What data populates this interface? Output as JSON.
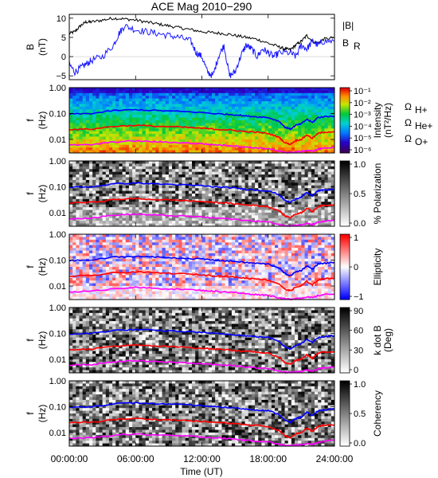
{
  "chart_data": {
    "type": "line",
    "title": "ACE Mag 2010−290",
    "xlabel": "Time (UT)",
    "x_ticks": [
      "00:00:00",
      "06:00:00",
      "12:00:00",
      "18:00:00",
      "24:00:00"
    ],
    "x_range_hours": [
      0,
      24
    ],
    "legend": {
      "B_total": "|B|",
      "B_radial": "B",
      "B_radial_sub": "R",
      "omega": "Ω",
      "h_sub": "H+",
      "he_sub": "He+",
      "o_sub": "O+"
    },
    "colors": {
      "B_total": "#000000",
      "B_radial": "#1a1aff",
      "omega_H": "#0000ff",
      "omega_He": "#ff0000",
      "omega_O": "#ff00ff"
    },
    "panels": [
      {
        "name": "magnetic-field",
        "type": "line",
        "ylabel": "B",
        "yunit": "(nT)",
        "ylim": [
          -6,
          11
        ],
        "y_ticks": [
          "10",
          "5",
          "0",
          "−5"
        ],
        "y_tick_values": [
          10,
          5,
          0,
          -5
        ],
        "series": [
          {
            "name": "|B|",
            "x": [
              0,
              0.5,
              1,
              1.5,
              2,
              3,
              4,
              5,
              6,
              7,
              8,
              9,
              10,
              11,
              12,
              13,
              14,
              15,
              16,
              17,
              18,
              19,
              19.5,
              20,
              20.5,
              21,
              21.5,
              22,
              22.5,
              23,
              24
            ],
            "y": [
              6,
              6.5,
              8,
              9,
              9,
              9.5,
              10,
              9.8,
              9.5,
              9,
              8.5,
              8,
              7.5,
              7,
              6.5,
              6.2,
              6,
              5.5,
              5,
              4.5,
              3.5,
              2.5,
              2,
              1.8,
              3,
              4,
              5.5,
              4,
              3.5,
              4.5,
              5
            ]
          },
          {
            "name": "B_R",
            "x": [
              0,
              0.5,
              1,
              1.5,
              2,
              3,
              4,
              4.5,
              5,
              6,
              7,
              8,
              9,
              10,
              11,
              11.5,
              12,
              12.5,
              13,
              13.5,
              14,
              14.5,
              15,
              15.5,
              16,
              16.5,
              17,
              17.5,
              18,
              18.5,
              19,
              20,
              20.5,
              21,
              21.5,
              22,
              22.5,
              23,
              24
            ],
            "y": [
              -2,
              -4,
              -3,
              -2,
              -1,
              0,
              3,
              6,
              8,
              7,
              6.5,
              6,
              5.5,
              5,
              4,
              1,
              0,
              -4,
              -5,
              0,
              3,
              -5,
              -4,
              0,
              3,
              2,
              0,
              2,
              1,
              0,
              1,
              1,
              0,
              3,
              2,
              4,
              3,
              4,
              4
            ]
          }
        ]
      },
      {
        "name": "power-spectrum",
        "type": "heatmap",
        "ylabel": "f",
        "yunit": "(Hz)",
        "y_scale": "log",
        "ylim": [
          0.003,
          1.0
        ],
        "y_ticks": [
          "1.00",
          "0.10",
          "0.01"
        ],
        "y_tick_values": [
          1,
          0.1,
          0.01
        ],
        "colorbar_label": "Intensity",
        "colorbar_unit": "(nT²/Hz)",
        "colorbar_ticks": [
          "10⁻¹",
          "10⁻²",
          "10⁻³",
          "10⁻⁴",
          "10⁻⁵",
          "10⁻⁶"
        ],
        "colormap": "rainbow"
      },
      {
        "name": "polarization",
        "type": "heatmap",
        "ylabel": "f",
        "yunit": "(Hz)",
        "y_scale": "log",
        "ylim": [
          0.003,
          1.0
        ],
        "y_ticks": [
          "1.00",
          "0.10",
          "0.01"
        ],
        "y_tick_values": [
          1,
          0.1,
          0.01
        ],
        "colorbar_label": "% Polarization",
        "colorbar_unit": "",
        "colorbar_ticks": [
          "1.0",
          "0.5",
          "0.0"
        ],
        "colormap": "gray"
      },
      {
        "name": "ellipticity",
        "type": "heatmap",
        "ylabel": "f",
        "yunit": "(Hz)",
        "y_scale": "log",
        "ylim": [
          0.003,
          1.0
        ],
        "y_ticks": [
          "1.00",
          "0.10",
          "0.01"
        ],
        "y_tick_values": [
          1,
          0.1,
          0.01
        ],
        "colorbar_label": "Ellipticity",
        "colorbar_unit": "",
        "colorbar_ticks": [
          "1",
          "0",
          "−1"
        ],
        "colormap": "bwr"
      },
      {
        "name": "k-dot-b",
        "type": "heatmap",
        "ylabel": "f",
        "yunit": "(Hz)",
        "y_scale": "log",
        "ylim": [
          0.003,
          1.0
        ],
        "y_ticks": [
          "1.00",
          "0.10",
          "0.01"
        ],
        "y_tick_values": [
          1,
          0.1,
          0.01
        ],
        "colorbar_label": "k dot B",
        "colorbar_unit": "(Deg)",
        "colorbar_ticks": [
          "90",
          "60",
          "30",
          "0"
        ],
        "colormap": "gray"
      },
      {
        "name": "coherency",
        "type": "heatmap",
        "ylabel": "f",
        "yunit": "(Hz)",
        "y_scale": "log",
        "ylim": [
          0.003,
          1.0
        ],
        "y_ticks": [
          "1.00",
          "0.10",
          "0.01"
        ],
        "y_tick_values": [
          1,
          0.1,
          0.01
        ],
        "colorbar_label": "Coherency",
        "colorbar_unit": "",
        "colorbar_ticks": [
          "1.0",
          "0.5",
          "0.0"
        ],
        "colormap": "gray"
      }
    ],
    "gyrofrequency_lines": [
      {
        "name": "H+",
        "x": [
          0,
          2,
          4,
          6,
          8,
          10,
          12,
          13,
          14,
          15,
          16,
          17,
          18,
          19,
          19.5,
          20,
          20.5,
          21,
          21.5,
          22,
          22.5,
          23,
          24
        ],
        "y": [
          0.095,
          0.1,
          0.13,
          0.14,
          0.13,
          0.12,
          0.11,
          0.1,
          0.095,
          0.09,
          0.08,
          0.075,
          0.07,
          0.05,
          0.03,
          0.025,
          0.035,
          0.04,
          0.06,
          0.045,
          0.07,
          0.075,
          0.08
        ]
      },
      {
        "name": "He+",
        "x": [
          0,
          2,
          4,
          6,
          8,
          10,
          12,
          13,
          14,
          15,
          16,
          17,
          18,
          19,
          19.5,
          20,
          20.5,
          21,
          21.5,
          22,
          22.5,
          23,
          24
        ],
        "y": [
          0.024,
          0.025,
          0.032,
          0.035,
          0.032,
          0.03,
          0.027,
          0.025,
          0.024,
          0.022,
          0.02,
          0.019,
          0.017,
          0.012,
          0.0075,
          0.0065,
          0.009,
          0.01,
          0.015,
          0.011,
          0.017,
          0.019,
          0.02
        ]
      },
      {
        "name": "O+",
        "x": [
          0,
          2,
          4,
          6,
          8,
          10,
          12,
          13,
          14,
          15,
          16,
          17,
          18,
          19,
          19.5,
          20,
          20.5,
          21,
          21.5,
          22,
          22.5,
          23,
          24
        ],
        "y": [
          0.006,
          0.0062,
          0.008,
          0.0088,
          0.008,
          0.0075,
          0.0068,
          0.0063,
          0.006,
          0.0056,
          0.005,
          0.0047,
          0.0044,
          0.0035,
          0.0032,
          0.0031,
          0.0033,
          0.0034,
          0.0038,
          0.0035,
          0.0042,
          0.0046,
          0.005
        ]
      }
    ]
  }
}
